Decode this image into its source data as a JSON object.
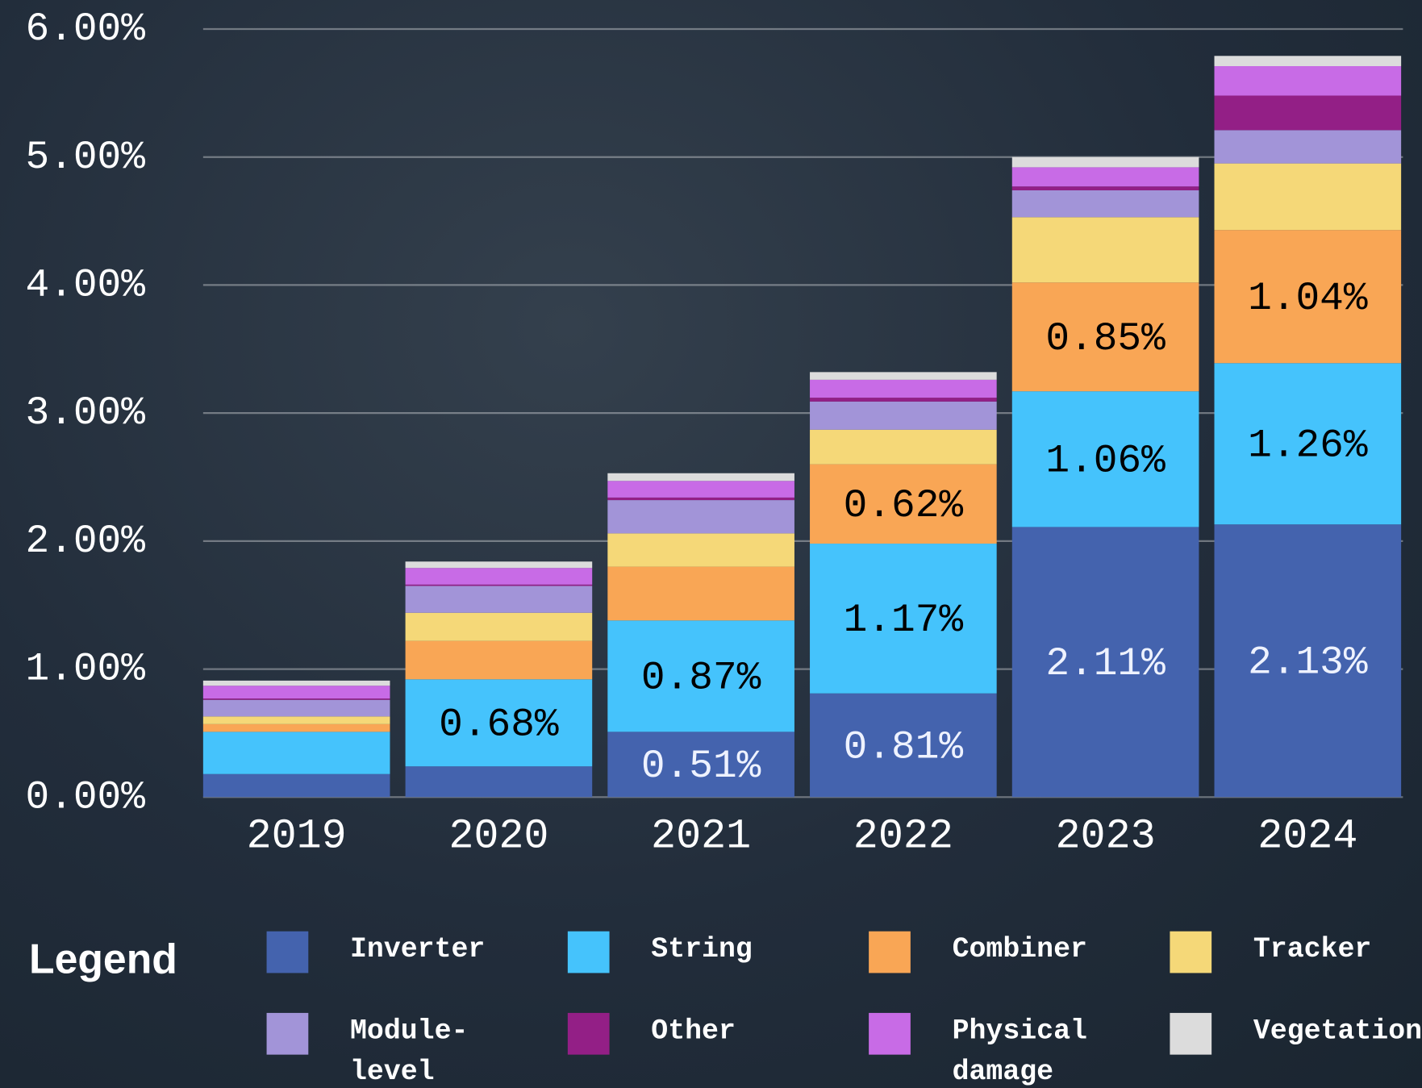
{
  "chart_data": {
    "type": "stacked_bar",
    "categories": [
      "2019",
      "2020",
      "2021",
      "2022",
      "2023",
      "2024"
    ],
    "series": [
      {
        "name": "Inverter",
        "color": "#4463ae",
        "values": [
          0.18,
          0.24,
          0.51,
          0.81,
          2.11,
          2.13
        ],
        "value_labels": [
          null,
          null,
          "0.51%",
          "0.81%",
          "2.11%",
          "2.13%"
        ]
      },
      {
        "name": "String",
        "color": "#45c3fc",
        "values": [
          0.33,
          0.68,
          0.87,
          1.17,
          1.06,
          1.26
        ],
        "value_labels": [
          null,
          "0.68%",
          "0.87%",
          "1.17%",
          "1.06%",
          "1.26%"
        ]
      },
      {
        "name": "Combiner",
        "color": "#f9a655",
        "values": [
          0.06,
          0.3,
          0.42,
          0.62,
          0.85,
          1.04
        ],
        "value_labels": [
          null,
          null,
          null,
          "0.62%",
          "0.85%",
          "1.04%"
        ]
      },
      {
        "name": "Tracker",
        "color": "#f5d878",
        "values": [
          0.06,
          0.22,
          0.26,
          0.27,
          0.51,
          0.52
        ]
      },
      {
        "name": "Module-level",
        "color": "#a294d8",
        "values": [
          0.13,
          0.21,
          0.26,
          0.22,
          0.21,
          0.26
        ]
      },
      {
        "name": "Other",
        "color": "#931f86",
        "values": [
          0.01,
          0.01,
          0.02,
          0.03,
          0.03,
          0.27
        ]
      },
      {
        "name": "Physical damage",
        "color": "#c86be6",
        "values": [
          0.1,
          0.13,
          0.13,
          0.14,
          0.15,
          0.23
        ]
      },
      {
        "name": "Vegetation",
        "color": "#dcdcdc",
        "values": [
          0.04,
          0.05,
          0.06,
          0.06,
          0.08,
          0.08
        ]
      }
    ],
    "ylim": [
      0,
      6
    ],
    "yticks": [
      {
        "value": 0,
        "label": "0.00%"
      },
      {
        "value": 1,
        "label": "1.00%"
      },
      {
        "value": 2,
        "label": "2.00%"
      },
      {
        "value": 3,
        "label": "3.00%"
      },
      {
        "value": 4,
        "label": "4.00%"
      },
      {
        "value": 5,
        "label": "5.00%"
      },
      {
        "value": 6,
        "label": "6.00%"
      }
    ],
    "grid": true,
    "legend_title": "Legend"
  }
}
